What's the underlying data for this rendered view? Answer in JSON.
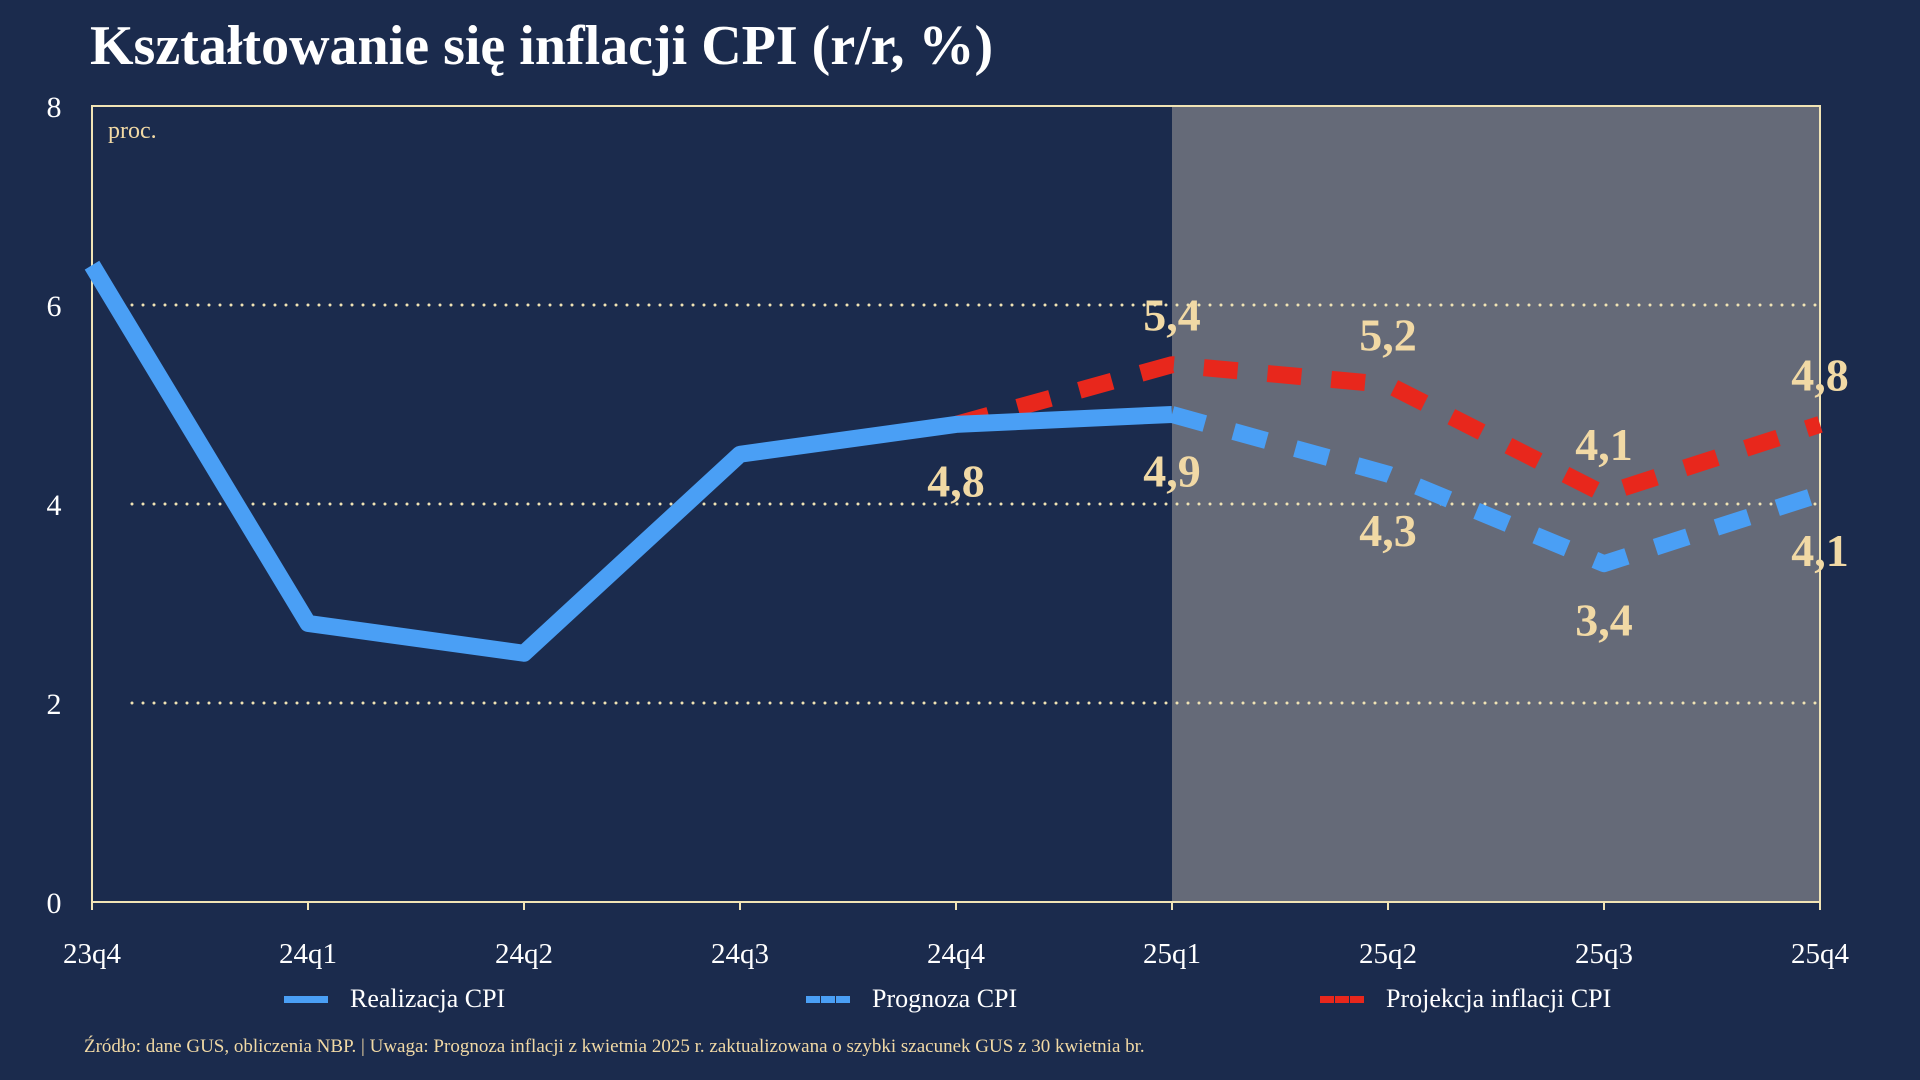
{
  "title": "Kształtowanie się inflacji CPI (r/r, %)",
  "colors": {
    "background": "#1b2b4d",
    "realization": "#4a9ff5",
    "forecast": "#4a9ff5",
    "projection": "#e8271c",
    "label": "#f1d9a5",
    "grid": "#f1e4b5",
    "shade": "#656a78"
  },
  "legend": {
    "realization": "Realizacja CPI",
    "forecast": "Prognoza CPI",
    "projection": "Projekcja inflacji CPI"
  },
  "footnote": "Źródło: dane GUS, obliczenia NBP.   |   Uwaga: Prognoza inflacji z kwietnia 2025 r. zaktualizowana o szybki szacunek GUS z 30 kwietnia br.",
  "chart_data": {
    "type": "line",
    "x": [
      "23q4",
      "24q1",
      "24q2",
      "24q3",
      "24q4",
      "25q1",
      "25q2",
      "25q3",
      "25q4"
    ],
    "ylim": [
      0,
      8
    ],
    "yticks": [
      0,
      2,
      4,
      6,
      8
    ],
    "gridlines": [
      2,
      4,
      6
    ],
    "unit_label": "proc.",
    "shaded_from": "25q1",
    "shaded_to": "25q4",
    "series": [
      {
        "name": "Realizacja CPI",
        "style": "solid",
        "x": [
          "23q4",
          "24q1",
          "24q2",
          "24q3",
          "24q4",
          "25q1"
        ],
        "values": [
          6.4,
          2.8,
          2.5,
          4.5,
          4.8,
          4.9
        ]
      },
      {
        "name": "Prognoza CPI",
        "style": "dashed",
        "x": [
          "25q1",
          "25q2",
          "25q3",
          "25q4"
        ],
        "values": [
          4.9,
          4.3,
          3.4,
          4.1
        ]
      },
      {
        "name": "Projekcja inflacji CPI",
        "style": "dashed",
        "x": [
          "24q4",
          "25q1",
          "25q2",
          "25q3",
          "25q4"
        ],
        "values": [
          4.8,
          5.4,
          5.2,
          4.1,
          4.8
        ]
      }
    ],
    "data_labels": [
      {
        "x": "24q4",
        "value": 4.8,
        "text": "4,8",
        "pos": "below"
      },
      {
        "x": "25q1",
        "value": 4.9,
        "text": "4,9",
        "pos": "below"
      },
      {
        "x": "25q1",
        "value": 5.4,
        "text": "5,4",
        "pos": "above"
      },
      {
        "x": "25q2",
        "value": 5.2,
        "text": "5,2",
        "pos": "above"
      },
      {
        "x": "25q2",
        "value": 4.3,
        "text": "4,3",
        "pos": "below"
      },
      {
        "x": "25q3",
        "value": 4.1,
        "text": "4,1",
        "pos": "above"
      },
      {
        "x": "25q3",
        "value": 3.4,
        "text": "3,4",
        "pos": "below"
      },
      {
        "x": "25q4",
        "value": 4.8,
        "text": "4,8",
        "pos": "above"
      },
      {
        "x": "25q4",
        "value": 4.1,
        "text": "4,1",
        "pos": "below"
      }
    ]
  }
}
